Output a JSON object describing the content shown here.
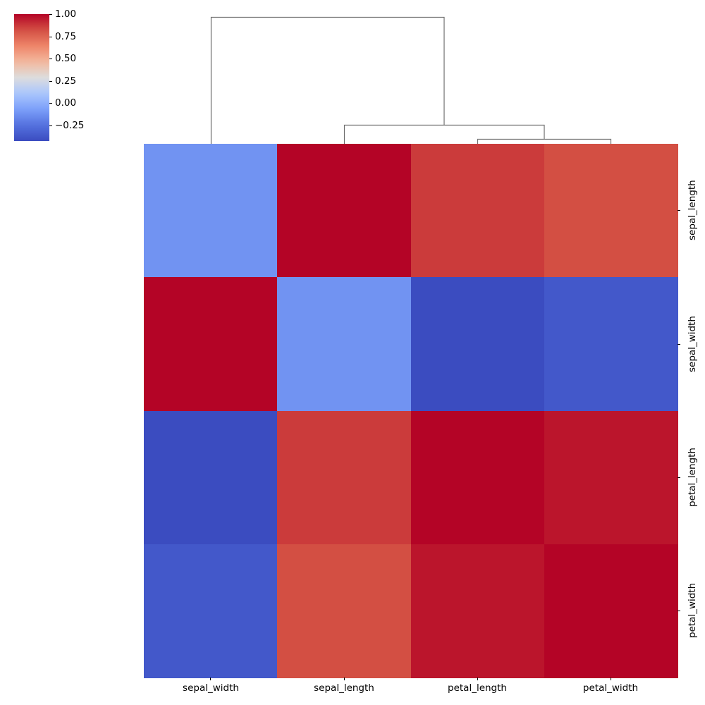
{
  "chart_data": {
    "type": "heatmap",
    "subtype": "clustermap",
    "title": "",
    "row_labels": [
      "sepal_length",
      "sepal_width",
      "petal_length",
      "petal_width"
    ],
    "col_labels": [
      "sepal_width",
      "sepal_length",
      "petal_length",
      "petal_width"
    ],
    "values": [
      [
        -0.12,
        1.0,
        0.87,
        0.82
      ],
      [
        1.0,
        -0.12,
        -0.43,
        -0.37
      ],
      [
        -0.43,
        0.87,
        1.0,
        0.96
      ],
      [
        -0.37,
        0.82,
        0.96,
        1.0
      ]
    ],
    "colormap": "coolwarm",
    "vmin": -0.43,
    "vmax": 1.0,
    "colorbar": {
      "ticks": [
        1.0,
        0.75,
        0.5,
        0.25,
        0.0,
        -0.25
      ],
      "tick_labels": [
        "1.00",
        "0.75",
        "0.50",
        "0.25",
        "0.00",
        "−0.25"
      ],
      "position": "top-left"
    },
    "column_dendrogram": {
      "links": [
        {
          "left": "petal_length",
          "right": "petal_width",
          "height": 0.04
        },
        {
          "left": "sepal_length",
          "right": "petal_length+petal_width",
          "height": 0.15
        },
        {
          "left": "sepal_width",
          "right": "sepal_length+petal_length+petal_width",
          "height": 1.0
        }
      ]
    },
    "row_dendrogram": "hidden",
    "xlabel": "",
    "ylabel": ""
  },
  "colorbar_labels": [
    "1.00",
    "0.75",
    "0.50",
    "0.25",
    "0.00",
    "−0.25"
  ],
  "x_labels": [
    "sepal_width",
    "sepal_length",
    "petal_length",
    "petal_width"
  ],
  "y_labels": [
    "sepal_length",
    "sepal_width",
    "petal_length",
    "petal_width"
  ]
}
